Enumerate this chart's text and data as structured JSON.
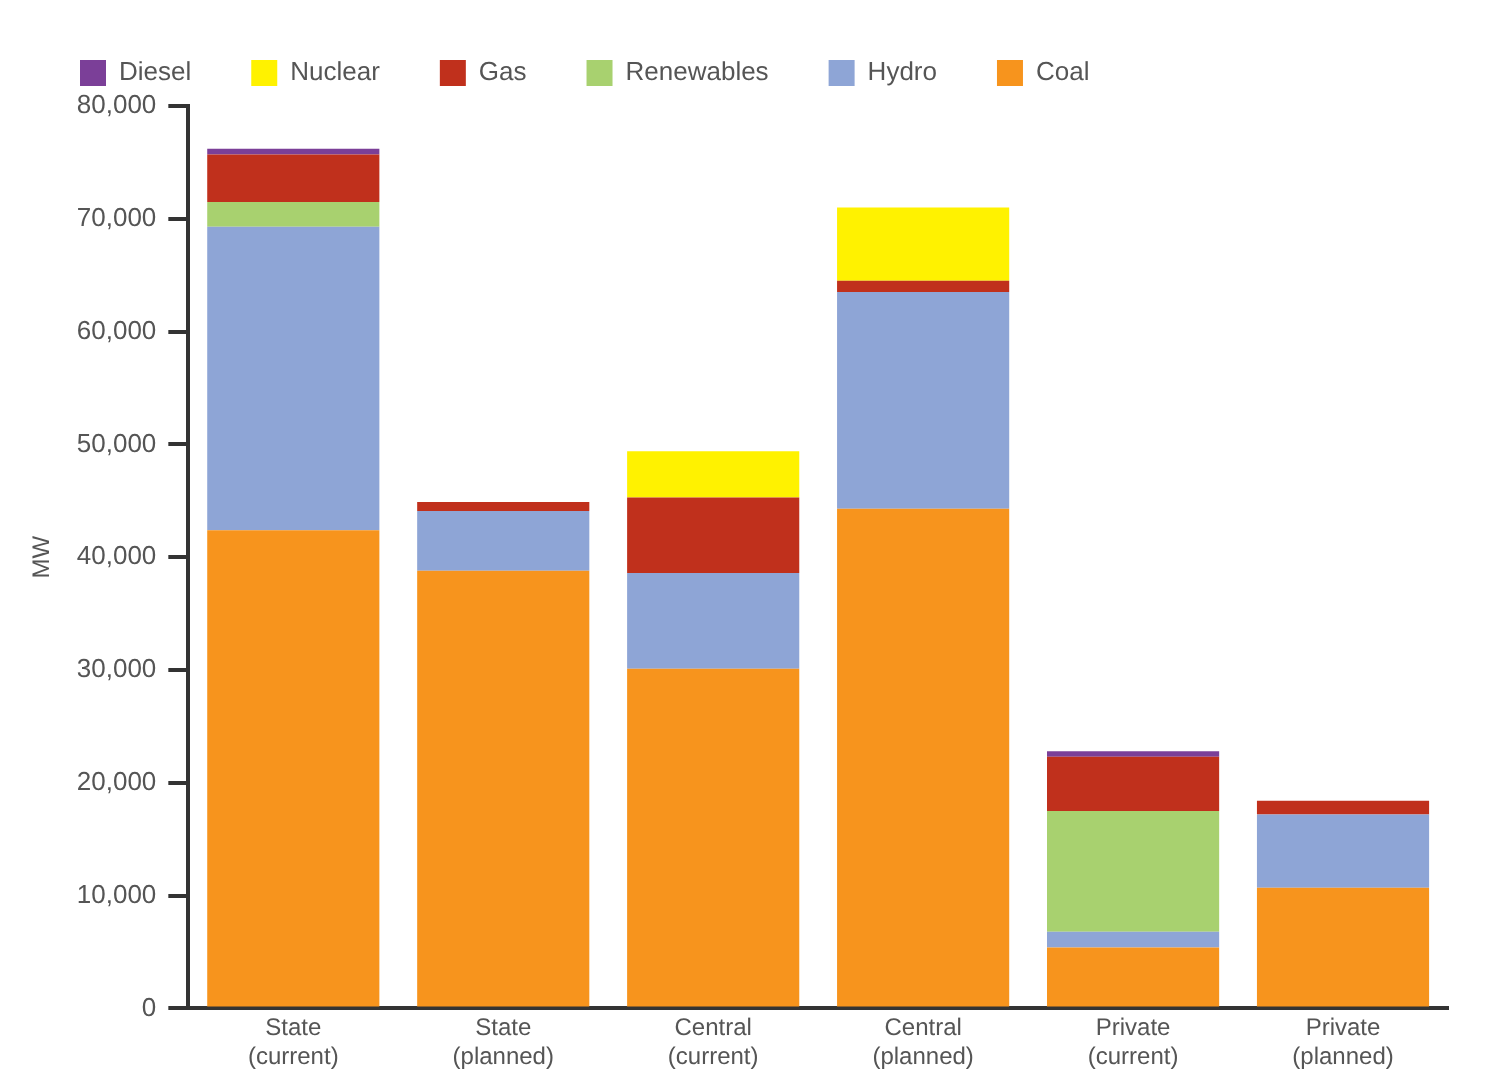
{
  "chart_data": {
    "type": "bar",
    "stacked": true,
    "ylabel": "MW",
    "categories": [
      "State\n(current)",
      "State\n(planned)",
      "Central\n(current)",
      "Central\n(planned)",
      "Private\n(current)",
      "Private\n(planned)"
    ],
    "series": [
      {
        "name": "Coal",
        "color": "#f7941d",
        "values": [
          42400,
          38800,
          30100,
          44300,
          5400,
          10700
        ]
      },
      {
        "name": "Hydro",
        "color": "#8ea5d6",
        "values": [
          26900,
          5300,
          8500,
          19200,
          1400,
          6500
        ]
      },
      {
        "name": "Renewables",
        "color": "#a8d16f",
        "values": [
          2200,
          0,
          0,
          0,
          10700,
          0
        ]
      },
      {
        "name": "Gas",
        "color": "#c0301c",
        "values": [
          4200,
          800,
          6700,
          1000,
          4800,
          1200
        ]
      },
      {
        "name": "Nuclear",
        "color": "#fff200",
        "values": [
          0,
          0,
          4100,
          6500,
          0,
          0
        ]
      },
      {
        "name": "Diesel",
        "color": "#7b3f98",
        "values": [
          500,
          0,
          0,
          0,
          500,
          0
        ]
      }
    ],
    "ylim": [
      0,
      80000
    ],
    "yticks": [
      {
        "value": 0,
        "label": "0"
      },
      {
        "value": 10000,
        "label": "10,000"
      },
      {
        "value": 20000,
        "label": "20,000"
      },
      {
        "value": 30000,
        "label": "30,000"
      },
      {
        "value": 40000,
        "label": "40,000"
      },
      {
        "value": 50000,
        "label": "50,000"
      },
      {
        "value": 60000,
        "label": "60,000"
      },
      {
        "value": 70000,
        "label": "70,000"
      },
      {
        "value": 80000,
        "label": "80,000"
      }
    ],
    "grid": false,
    "legend": "top"
  }
}
